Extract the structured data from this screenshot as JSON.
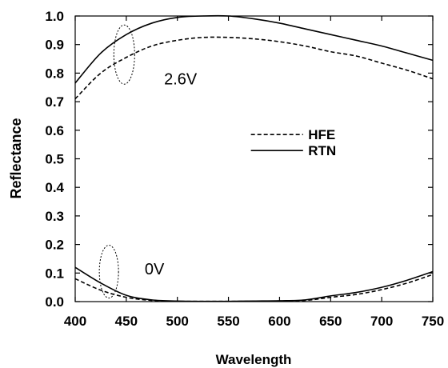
{
  "chart_data": {
    "type": "line",
    "title": "",
    "xlabel": "Wavelength",
    "ylabel": "Reflectance",
    "xlim": [
      400,
      750
    ],
    "ylim": [
      0,
      1.0
    ],
    "x_ticks": [
      "400",
      "450",
      "500",
      "550",
      "600",
      "650",
      "700",
      "750"
    ],
    "y_ticks": [
      "0.0",
      "0.1",
      "0.2",
      "0.3",
      "0.4",
      "0.5",
      "0.6",
      "0.7",
      "0.8",
      "0.9",
      "1.0"
    ],
    "grid": false,
    "legend_position": "center",
    "x": [
      400,
      425,
      450,
      475,
      500,
      525,
      550,
      575,
      600,
      625,
      650,
      675,
      700,
      725,
      750
    ],
    "series": [
      {
        "name": "RTN",
        "style": "solid",
        "group": "2.6V",
        "values": [
          0.765,
          0.87,
          0.935,
          0.975,
          0.995,
          1.0,
          1.0,
          0.99,
          0.975,
          0.955,
          0.935,
          0.915,
          0.895,
          0.87,
          0.845
        ]
      },
      {
        "name": "HFE",
        "style": "dashed",
        "group": "2.6V",
        "values": [
          0.71,
          0.8,
          0.855,
          0.895,
          0.915,
          0.925,
          0.925,
          0.92,
          0.91,
          0.895,
          0.875,
          0.86,
          0.835,
          0.81,
          0.78
        ]
      },
      {
        "name": "RTN",
        "style": "solid",
        "group": "0V",
        "values": [
          0.12,
          0.065,
          0.022,
          0.006,
          0.002,
          0.001,
          0.001,
          0.002,
          0.003,
          0.006,
          0.02,
          0.032,
          0.05,
          0.075,
          0.105
        ]
      },
      {
        "name": "HFE",
        "style": "dashed",
        "group": "0V",
        "values": [
          0.08,
          0.04,
          0.015,
          0.004,
          0.001,
          0.001,
          0.001,
          0.001,
          0.002,
          0.004,
          0.015,
          0.025,
          0.042,
          0.065,
          0.095
        ]
      }
    ],
    "annotations": [
      "2.6V",
      "0V"
    ]
  },
  "colors": {
    "line": "#000000",
    "background": "#ffffff"
  }
}
